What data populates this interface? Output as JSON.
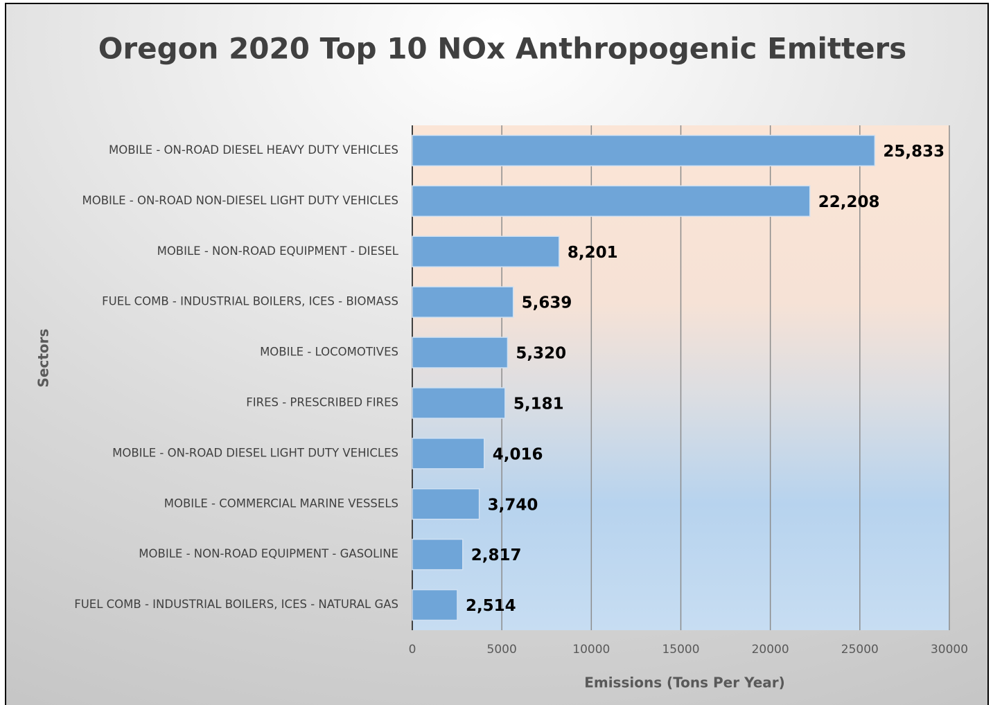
{
  "chart_data": {
    "type": "hbar",
    "title": "Oregon 2020 Top 10 NOx Anthropogenic Emitters",
    "x_label": "Emissions (Tons Per Year)",
    "y_label": "Sectors",
    "categories": [
      "MOBILE - ON-ROAD DIESEL HEAVY DUTY VEHICLES",
      "MOBILE - ON-ROAD NON-DIESEL LIGHT DUTY VEHICLES",
      "MOBILE - NON-ROAD EQUIPMENT - DIESEL",
      "FUEL COMB - INDUSTRIAL BOILERS, ICES - BIOMASS",
      "MOBILE - LOCOMOTIVES",
      "FIRES - PRESCRIBED FIRES",
      "MOBILE - ON-ROAD DIESEL LIGHT DUTY VEHICLES",
      "MOBILE - COMMERCIAL MARINE VESSELS",
      "MOBILE - NON-ROAD EQUIPMENT - GASOLINE",
      "FUEL COMB - INDUSTRIAL BOILERS, ICES - NATURAL GAS"
    ],
    "values": [
      25833,
      22208,
      8201,
      5639,
      5320,
      5181,
      4016,
      3740,
      2817,
      2514
    ],
    "value_labels": [
      "25,833",
      "22,208",
      "8,201",
      "5,639",
      "5,320",
      "5,181",
      "4,016",
      "3,740",
      "2,817",
      "2,514"
    ],
    "color": "#6fa5d8",
    "xlim": [
      0,
      30000
    ],
    "xticks": [
      0,
      5000,
      10000,
      15000,
      20000,
      25000,
      30000
    ],
    "grid": true
  }
}
